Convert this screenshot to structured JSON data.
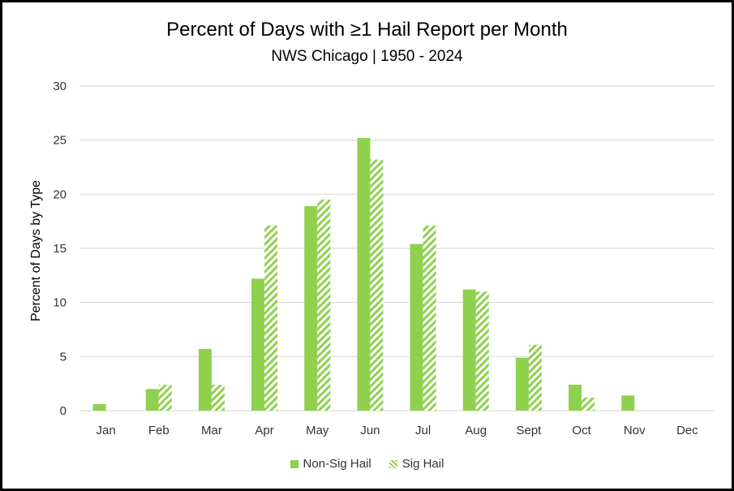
{
  "chart_data": {
    "type": "bar",
    "title": "Percent of Days with ≥1 Hail Report per Month",
    "subtitle": "NWS Chicago | 1950 - 2024",
    "xlabel": "",
    "ylabel": "Percent of Days by Type",
    "ylim": [
      0,
      30
    ],
    "yticks": [
      0,
      5,
      10,
      15,
      20,
      25,
      30
    ],
    "grid": true,
    "legend_position": "bottom",
    "categories": [
      "Jan",
      "Feb",
      "Mar",
      "Apr",
      "May",
      "Jun",
      "Jul",
      "Aug",
      "Sept",
      "Oct",
      "Nov",
      "Dec"
    ],
    "series": [
      {
        "name": "Non-Sig Hail",
        "pattern": "solid",
        "color": "#8fd14f",
        "values": [
          0.6,
          2.0,
          5.7,
          12.2,
          18.9,
          25.2,
          15.4,
          11.2,
          4.9,
          2.4,
          1.4,
          0
        ]
      },
      {
        "name": "Sig Hail",
        "pattern": "hatched",
        "color": "#8fd14f",
        "values": [
          0,
          2.4,
          2.4,
          17.1,
          19.5,
          23.2,
          17.1,
          11.0,
          6.1,
          1.2,
          0,
          0
        ]
      }
    ]
  }
}
